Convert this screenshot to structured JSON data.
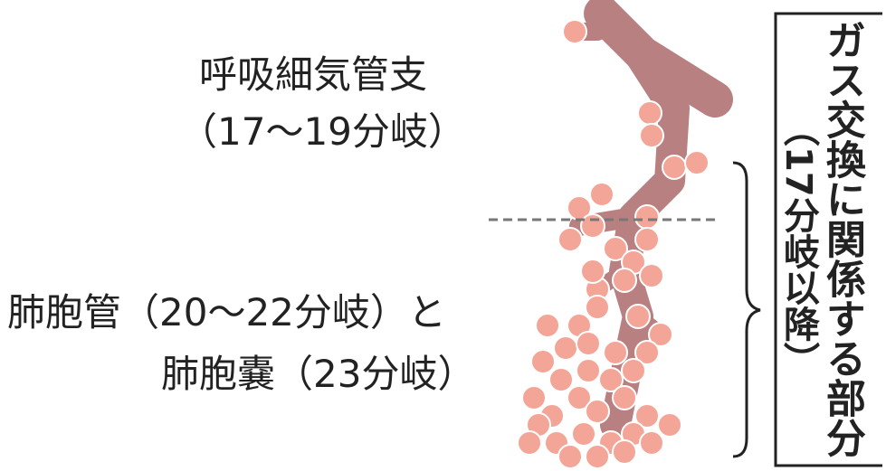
{
  "labels": [
    {
      "title": "呼吸細気管支",
      "detail": "（17～19分岐）"
    },
    {
      "title": "肺胞管（20～22分岐）と",
      "detail": "肺胞嚢（23分岐）"
    }
  ],
  "box": {
    "title": "ガス交換に関係する部分",
    "detail": "（17分岐以降）"
  }
}
